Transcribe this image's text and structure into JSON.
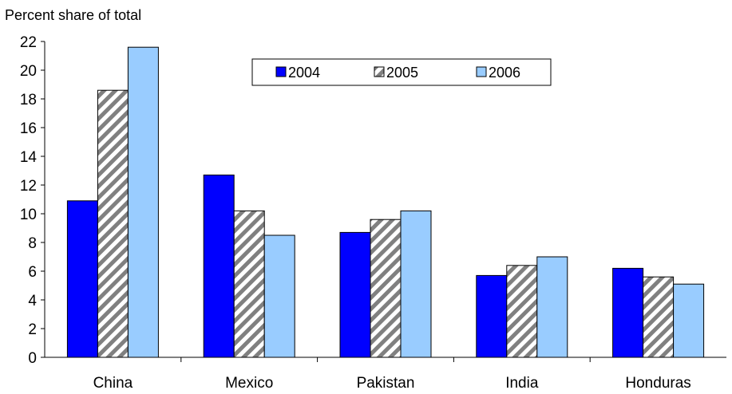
{
  "chart_data": {
    "type": "bar",
    "title": "",
    "ylabel": "Percent share of total",
    "xlabel": "",
    "categories": [
      "China",
      "Mexico",
      "Pakistan",
      "India",
      "Honduras"
    ],
    "series": [
      {
        "name": "2004",
        "values": [
          10.9,
          12.7,
          8.7,
          5.7,
          6.2
        ],
        "color": "#0000ff",
        "pattern": "solid"
      },
      {
        "name": "2005",
        "values": [
          18.6,
          10.2,
          9.6,
          6.4,
          5.6
        ],
        "color": "#808080",
        "pattern": "diagonal-hatch"
      },
      {
        "name": "2006",
        "values": [
          21.6,
          8.5,
          10.2,
          7.0,
          5.1
        ],
        "color": "#99ccff",
        "pattern": "solid"
      }
    ],
    "ylim": [
      0,
      22
    ],
    "yticks": [
      "0",
      "2",
      "4",
      "6",
      "8",
      "10",
      "12",
      "14",
      "16",
      "18",
      "20",
      "22"
    ],
    "grid": false,
    "legend_position": "top-center"
  }
}
